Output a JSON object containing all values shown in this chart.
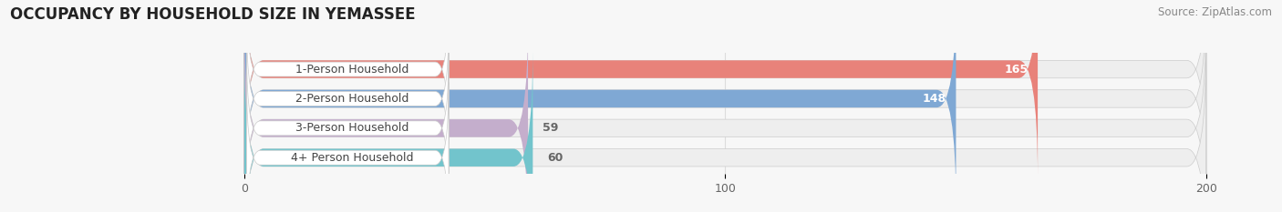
{
  "title": "OCCUPANCY BY HOUSEHOLD SIZE IN YEMASSEE",
  "source": "Source: ZipAtlas.com",
  "categories": [
    "1-Person Household",
    "2-Person Household",
    "3-Person Household",
    "4+ Person Household"
  ],
  "values": [
    165,
    148,
    59,
    60
  ],
  "bar_colors": [
    "#E8827A",
    "#7FA8D4",
    "#C4AECC",
    "#72C4CC"
  ],
  "bar_bg_colors": [
    "#EEEEEE",
    "#EEEEEE",
    "#EEEEEE",
    "#EEEEEE"
  ],
  "label_bg_color": "#ffffff",
  "label_text_color": "#444444",
  "value_color_inside": "#ffffff",
  "value_color_outside": "#666666",
  "xlim_min": -50,
  "xlim_max": 215,
  "data_min": 0,
  "data_max": 200,
  "xticks": [
    0,
    100,
    200
  ],
  "title_fontsize": 12,
  "source_fontsize": 8.5,
  "label_fontsize": 9,
  "value_fontsize": 9,
  "tick_fontsize": 9,
  "bar_height": 0.6,
  "background_color": "#f7f7f7",
  "grid_color": "#dddddd"
}
